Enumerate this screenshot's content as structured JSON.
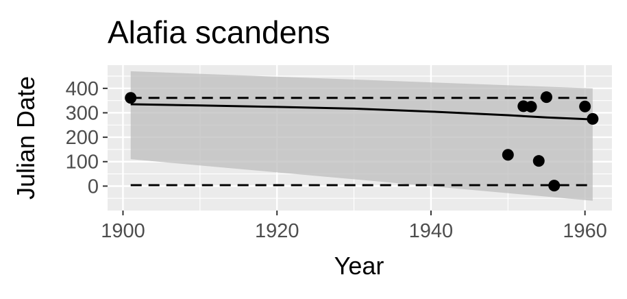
{
  "chart_data": {
    "type": "scatter",
    "title": "Alafia scandens",
    "xlabel": "Year",
    "ylabel": "Julian Date",
    "xlim": [
      1898,
      1963.5
    ],
    "ylim": [
      -100,
      495
    ],
    "xticks": [
      1900,
      1920,
      1940,
      1960
    ],
    "yticks": [
      0,
      100,
      200,
      300,
      400
    ],
    "grid": true,
    "points": [
      {
        "x": 1901,
        "y": 361
      },
      {
        "x": 1950,
        "y": 128
      },
      {
        "x": 1952,
        "y": 327
      },
      {
        "x": 1953,
        "y": 325
      },
      {
        "x": 1954,
        "y": 103
      },
      {
        "x": 1955,
        "y": 364
      },
      {
        "x": 1956,
        "y": 2
      },
      {
        "x": 1960,
        "y": 326
      },
      {
        "x": 1961,
        "y": 275
      }
    ],
    "trend_line": {
      "x": [
        1901,
        1910,
        1920,
        1930,
        1940,
        1950,
        1955,
        1961
      ],
      "y": [
        335,
        330,
        324,
        317,
        305,
        290,
        281,
        273
      ]
    },
    "confidence_band": {
      "x": [
        1901,
        1961
      ],
      "upper": [
        470,
        400
      ],
      "lower": [
        110,
        -60
      ]
    },
    "reference_lines": [
      {
        "style": "dashed",
        "x": [
          1901,
          1961
        ],
        "y": [
          361,
          361
        ]
      },
      {
        "style": "dashed",
        "x": [
          1901,
          1961
        ],
        "y": [
          4,
          4
        ]
      }
    ],
    "colors": {
      "panel": "#ebebeb",
      "grid": "#ffffff",
      "band": "#bebebe",
      "points": "#000000",
      "lines": "#000000"
    }
  }
}
